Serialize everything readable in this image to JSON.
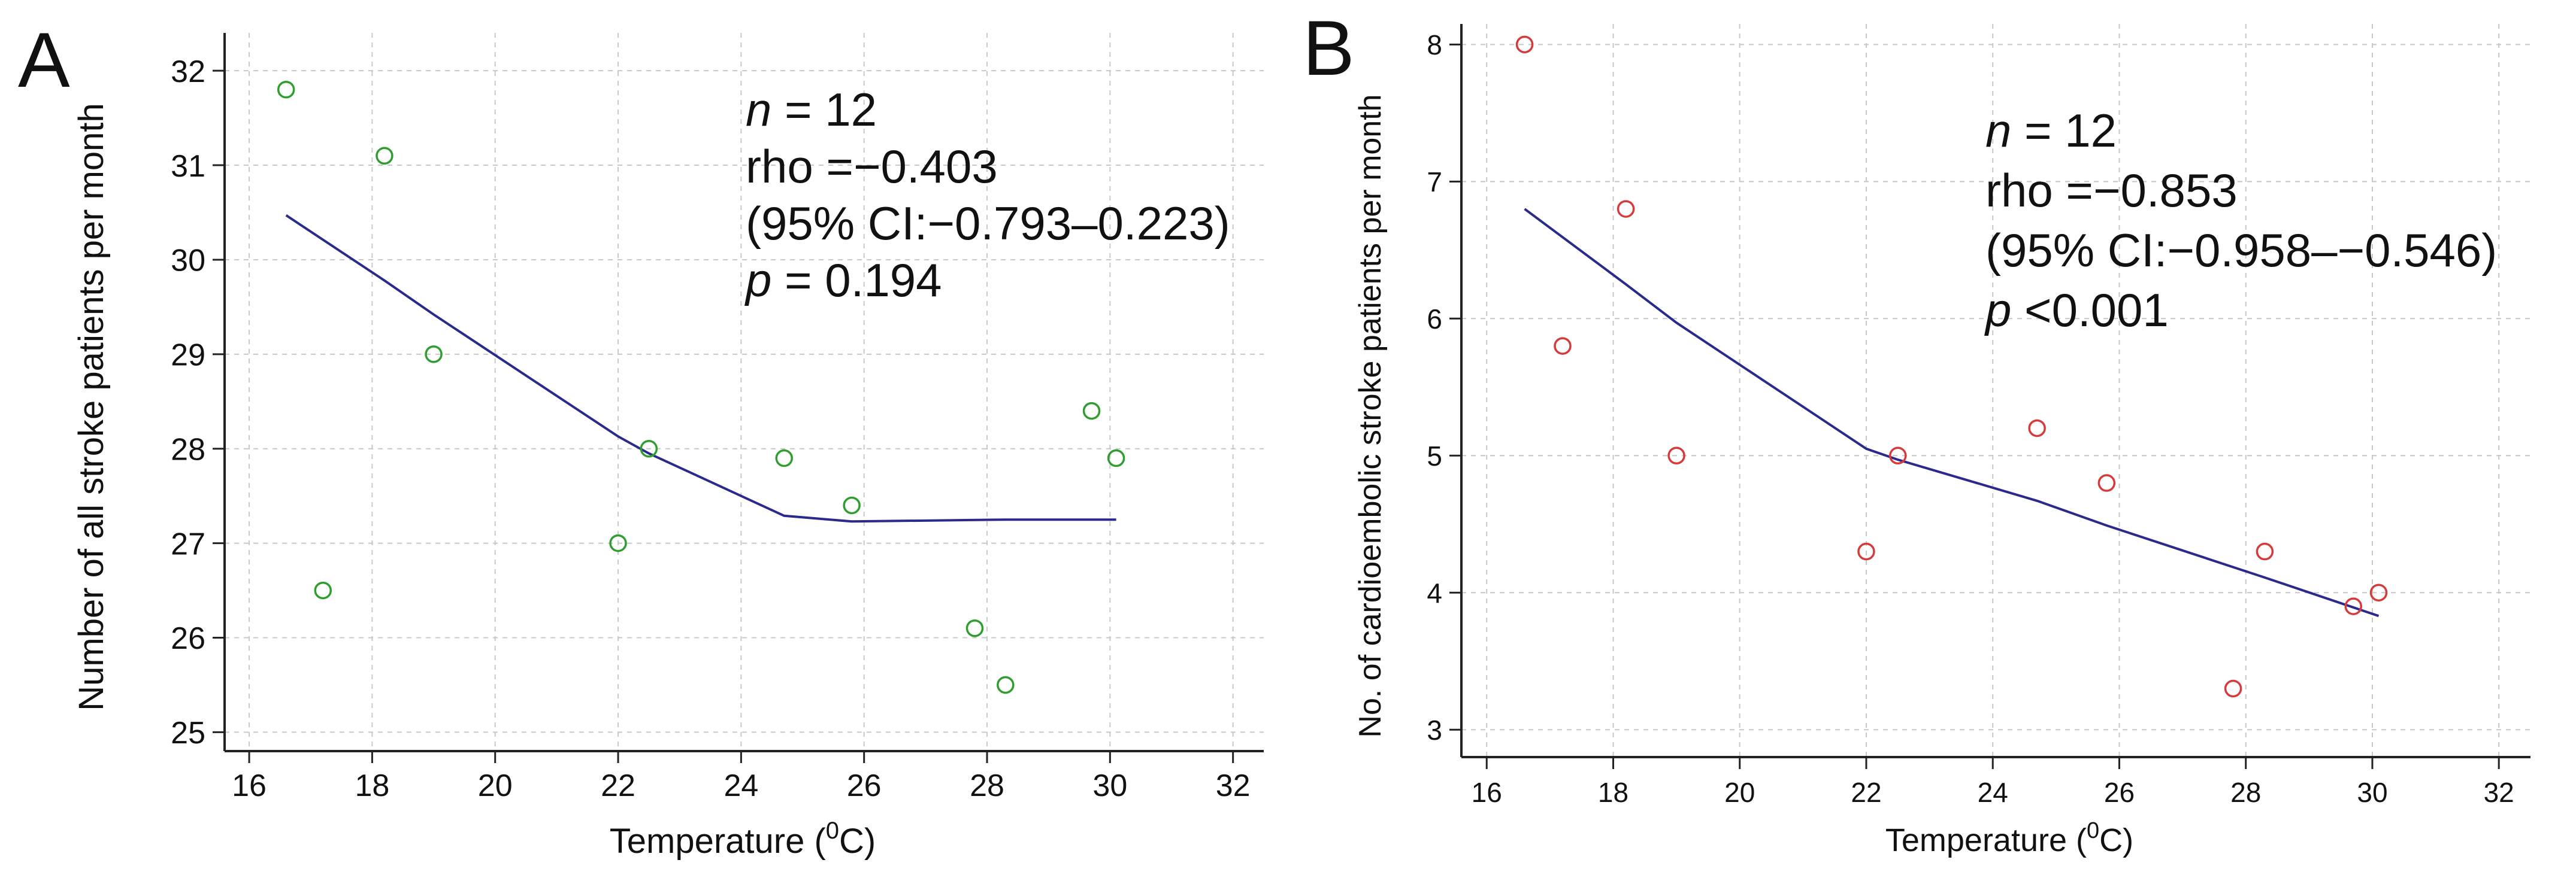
{
  "chart_data": [
    {
      "type": "scatter",
      "panel_label": "A",
      "xlabel": "Temperature (",
      "xlabel_sup": "0",
      "xlabel_end": "C)",
      "ylabel": "Number of all stroke patients per month",
      "xlim": [
        15.6,
        32.5
      ],
      "ylim": [
        24.8,
        32.4
      ],
      "xticks": [
        16,
        18,
        20,
        22,
        24,
        26,
        28,
        30,
        32
      ],
      "yticks": [
        25,
        26,
        27,
        28,
        29,
        30,
        31,
        32
      ],
      "grid": true,
      "marker_color": "#2e9e2e",
      "line_color": "#2a2a8c",
      "points": [
        {
          "x": 16.6,
          "y": 31.8
        },
        {
          "x": 17.2,
          "y": 26.5
        },
        {
          "x": 18.2,
          "y": 31.1
        },
        {
          "x": 19.0,
          "y": 29.0
        },
        {
          "x": 22.0,
          "y": 27.0
        },
        {
          "x": 22.5,
          "y": 28.0
        },
        {
          "x": 24.7,
          "y": 27.9
        },
        {
          "x": 25.8,
          "y": 27.4
        },
        {
          "x": 27.8,
          "y": 26.1
        },
        {
          "x": 28.3,
          "y": 25.5
        },
        {
          "x": 29.7,
          "y": 28.4
        },
        {
          "x": 30.1,
          "y": 27.9
        }
      ],
      "fit_line": [
        {
          "x": 16.6,
          "y": 30.47
        },
        {
          "x": 18.2,
          "y": 29.78
        },
        {
          "x": 19.0,
          "y": 29.42
        },
        {
          "x": 22.0,
          "y": 28.13
        },
        {
          "x": 22.5,
          "y": 27.95
        },
        {
          "x": 24.7,
          "y": 27.29
        },
        {
          "x": 25.8,
          "y": 27.23
        },
        {
          "x": 28.3,
          "y": 27.25
        },
        {
          "x": 30.1,
          "y": 27.25
        }
      ],
      "annotation": {
        "n_label": "n",
        "n_value": " = 12",
        "rho": "rho =−0.403",
        "ci": "(95% CI:−0.793–0.223)",
        "p_label": "p",
        "p_value": " = 0.194"
      }
    },
    {
      "type": "scatter",
      "panel_label": "B",
      "xlabel": "Temperature (",
      "xlabel_sup": "0",
      "xlabel_end": "C)",
      "ylabel": "No. of cardioembolic stroke patients per month",
      "xlim": [
        15.6,
        32.5
      ],
      "ylim": [
        2.8,
        8.15
      ],
      "xticks": [
        16,
        18,
        20,
        22,
        24,
        26,
        28,
        30,
        32
      ],
      "yticks": [
        3,
        4,
        5,
        6,
        7,
        8
      ],
      "grid": true,
      "marker_color": "#d63a3a",
      "line_color": "#2a2a8c",
      "points": [
        {
          "x": 16.6,
          "y": 8.0
        },
        {
          "x": 17.2,
          "y": 5.8
        },
        {
          "x": 18.2,
          "y": 6.8
        },
        {
          "x": 19.0,
          "y": 5.0
        },
        {
          "x": 22.0,
          "y": 4.3
        },
        {
          "x": 22.5,
          "y": 5.0
        },
        {
          "x": 24.7,
          "y": 5.2
        },
        {
          "x": 25.8,
          "y": 4.8
        },
        {
          "x": 27.8,
          "y": 3.3
        },
        {
          "x": 28.3,
          "y": 4.3
        },
        {
          "x": 29.7,
          "y": 3.9
        },
        {
          "x": 30.1,
          "y": 4.0
        }
      ],
      "fit_line": [
        {
          "x": 16.6,
          "y": 6.8
        },
        {
          "x": 18.2,
          "y": 6.25
        },
        {
          "x": 19.0,
          "y": 5.97
        },
        {
          "x": 22.0,
          "y": 5.05
        },
        {
          "x": 22.5,
          "y": 4.97
        },
        {
          "x": 24.7,
          "y": 4.67
        },
        {
          "x": 25.8,
          "y": 4.49
        },
        {
          "x": 28.3,
          "y": 4.11
        },
        {
          "x": 30.1,
          "y": 3.83
        }
      ],
      "annotation": {
        "n_label": "n",
        "n_value": " = 12",
        "rho": "rho =−0.853",
        "ci": "(95% CI:−0.958–−0.546)",
        "p_label": "p",
        "p_value": " <0.001"
      }
    }
  ]
}
